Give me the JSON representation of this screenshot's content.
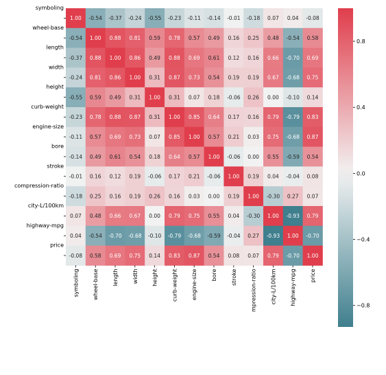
{
  "chart_data": {
    "type": "heatmap",
    "title": "",
    "xlabel": "",
    "ylabel": "",
    "variables": [
      "symboling",
      "wheel-base",
      "length",
      "width",
      "height",
      "curb-weight",
      "engine-size",
      "bore",
      "stroke",
      "compression-ratio",
      "city-L/100km",
      "highway-mpg",
      "price"
    ],
    "x_tick_labels": [
      "symboling",
      "wheel-base",
      "length",
      "width",
      "height",
      "curb-weight",
      "engine-size",
      "bore",
      "stroke",
      "mpression-ratio",
      "city-L/100km",
      "highway-mpg",
      "price"
    ],
    "y_tick_labels": [
      "symboling",
      "wheel-base",
      "length",
      "width",
      "height",
      "curb-weight",
      "engine-size",
      "bore",
      "stroke",
      "compression-ratio",
      "city-L/100km",
      "highway-mpg",
      "price"
    ],
    "matrix": [
      [
        "1.00",
        "-0.54",
        "-0.37",
        "-0.24",
        "-0.55",
        "-0.23",
        "-0.11",
        "-0.14",
        "-0.01",
        "-0.18",
        "0.07",
        "0.04",
        "-0.08"
      ],
      [
        "-0.54",
        "1.00",
        "0.88",
        "0.81",
        "0.59",
        "0.78",
        "0.57",
        "0.49",
        "0.16",
        "0.25",
        "0.48",
        "-0.54",
        "0.58"
      ],
      [
        "-0.37",
        "0.88",
        "1.00",
        "0.86",
        "0.49",
        "0.88",
        "0.69",
        "0.61",
        "0.12",
        "0.16",
        "0.66",
        "-0.70",
        "0.69"
      ],
      [
        "-0.24",
        "0.81",
        "0.86",
        "1.00",
        "0.31",
        "0.87",
        "0.73",
        "0.54",
        "0.19",
        "0.19",
        "0.67",
        "-0.68",
        "0.75"
      ],
      [
        "-0.55",
        "0.59",
        "0.49",
        "0.31",
        "1.00",
        "0.31",
        "0.07",
        "0.18",
        "-0.06",
        "0.26",
        "0.00",
        "-0.10",
        "0.14"
      ],
      [
        "-0.23",
        "0.78",
        "0.88",
        "0.87",
        "0.31",
        "1.00",
        "0.85",
        "0.64",
        "0.17",
        "0.16",
        "0.79",
        "-0.79",
        "0.83"
      ],
      [
        "-0.11",
        "0.57",
        "0.69",
        "0.73",
        "0.07",
        "0.85",
        "1.00",
        "0.57",
        "0.21",
        "0.03",
        "0.75",
        "-0.68",
        "0.87"
      ],
      [
        "-0.14",
        "0.49",
        "0.61",
        "0.54",
        "0.18",
        "0.64",
        "0.57",
        "1.00",
        "-0.06",
        "0.00",
        "0.55",
        "-0.59",
        "0.54"
      ],
      [
        "-0.01",
        "0.16",
        "0.12",
        "0.19",
        "-0.06",
        "0.17",
        "0.21",
        "-0.06",
        "1.00",
        "0.19",
        "0.04",
        "-0.04",
        "0.08"
      ],
      [
        "-0.18",
        "0.25",
        "0.16",
        "0.19",
        "0.26",
        "0.16",
        "0.03",
        "0.00",
        "0.19",
        "1.00",
        "-0.30",
        "0.27",
        "0.07"
      ],
      [
        "0.07",
        "0.48",
        "0.66",
        "0.67",
        "0.00",
        "0.79",
        "0.75",
        "0.55",
        "0.04",
        "-0.30",
        "1.00",
        "-0.93",
        "0.79"
      ],
      [
        "0.04",
        "-0.54",
        "-0.70",
        "-0.68",
        "-0.10",
        "-0.79",
        "-0.68",
        "-0.59",
        "-0.04",
        "0.27",
        "-0.93",
        "1.00",
        "-0.70"
      ],
      [
        "-0.08",
        "0.58",
        "0.69",
        "0.75",
        "0.14",
        "0.83",
        "0.87",
        "0.54",
        "0.08",
        "0.07",
        "0.79",
        "-0.70",
        "1.00"
      ]
    ],
    "colorbar": {
      "ticks": [
        "0.8",
        "0.4",
        "0.0",
        "−0.4",
        "−0.8"
      ],
      "tick_values": [
        0.8,
        0.4,
        0.0,
        -0.4,
        -0.8
      ],
      "range": [
        -0.93,
        1.0
      ]
    },
    "colors": {
      "negative": "#3f7f8e",
      "neutral": "#f2f2f2",
      "positive": "#e03e4c"
    }
  }
}
